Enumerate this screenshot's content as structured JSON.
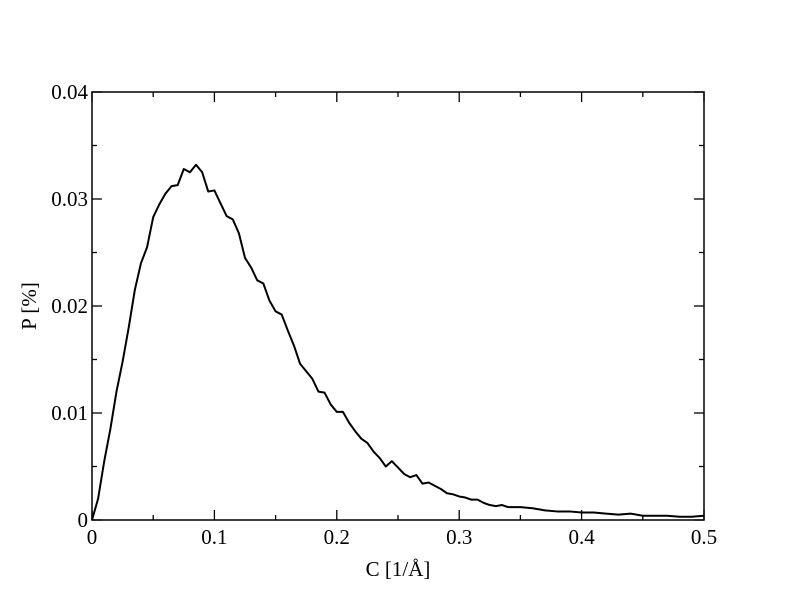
{
  "chart_data": {
    "type": "line",
    "x_label": "C [1/Å]",
    "y_label": "P [%]",
    "xlim": [
      0,
      0.5
    ],
    "xticks": [
      0,
      0.1,
      0.2,
      0.3,
      0.4,
      0.5
    ],
    "ylim": [
      0,
      0.04
    ],
    "yticks": [
      0,
      0.01,
      0.02,
      0.03,
      0.04
    ],
    "minor_ticks": true,
    "mirror_ticks": true,
    "series": [
      {
        "color": "#000000",
        "x": [
          0,
          0.005,
          0.01,
          0.015,
          0.02,
          0.025,
          0.03,
          0.035,
          0.04,
          0.045,
          0.05,
          0.055,
          0.06,
          0.065,
          0.07,
          0.075,
          0.08,
          0.085,
          0.09,
          0.095,
          0.1,
          0.105,
          0.11,
          0.115,
          0.12,
          0.125,
          0.13,
          0.135,
          0.14,
          0.145,
          0.15,
          0.155,
          0.16,
          0.165,
          0.17,
          0.175,
          0.18,
          0.185,
          0.19,
          0.195,
          0.2,
          0.205,
          0.21,
          0.215,
          0.22,
          0.225,
          0.23,
          0.235,
          0.24,
          0.245,
          0.25,
          0.255,
          0.26,
          0.265,
          0.27,
          0.275,
          0.28,
          0.285,
          0.29,
          0.295,
          0.3,
          0.305,
          0.31,
          0.315,
          0.32,
          0.325,
          0.33,
          0.335,
          0.34,
          0.35,
          0.36,
          0.37,
          0.38,
          0.39,
          0.4,
          0.41,
          0.42,
          0.43,
          0.44,
          0.45,
          0.46,
          0.47,
          0.48,
          0.49,
          0.5
        ],
        "values": [
          0,
          0.002,
          0.0055,
          0.0085,
          0.012,
          0.0148,
          0.018,
          0.0215,
          0.024,
          0.0255,
          0.0283,
          0.0295,
          0.0305,
          0.0312,
          0.0313,
          0.0328,
          0.0325,
          0.0332,
          0.0325,
          0.0307,
          0.0308,
          0.0296,
          0.0284,
          0.0281,
          0.0268,
          0.0245,
          0.0236,
          0.0224,
          0.0221,
          0.0205,
          0.0195,
          0.0192,
          0.0177,
          0.0163,
          0.0146,
          0.0139,
          0.0132,
          0.012,
          0.0119,
          0.0108,
          0.0101,
          0.0101,
          0.0091,
          0.0083,
          0.0076,
          0.0072,
          0.0064,
          0.0058,
          0.005,
          0.0055,
          0.0049,
          0.0043,
          0.004,
          0.0042,
          0.0034,
          0.0035,
          0.0032,
          0.0029,
          0.0025,
          0.0024,
          0.0022,
          0.0021,
          0.0019,
          0.0019,
          0.0016,
          0.0014,
          0.0013,
          0.0014,
          0.0012,
          0.0012,
          0.0011,
          0.0009,
          0.0008,
          0.0008,
          0.0007,
          0.0007,
          0.0006,
          0.0005,
          0.0006,
          0.0004,
          0.0004,
          0.0004,
          0.0003,
          0.0003,
          0.0004
        ]
      }
    ]
  }
}
